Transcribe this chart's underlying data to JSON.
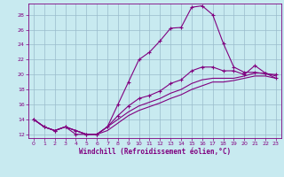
{
  "xlabel": "Windchill (Refroidissement éolien,°C)",
  "xlim": [
    -0.5,
    23.5
  ],
  "ylim": [
    11.5,
    29.5
  ],
  "xticks": [
    0,
    1,
    2,
    3,
    4,
    5,
    6,
    7,
    8,
    9,
    10,
    11,
    12,
    13,
    14,
    15,
    16,
    17,
    18,
    19,
    20,
    21,
    22,
    23
  ],
  "yticks": [
    12,
    14,
    16,
    18,
    20,
    22,
    24,
    26,
    28
  ],
  "background_color": "#c8eaf0",
  "line_color": "#800080",
  "grid_color": "#99bbcc",
  "curves": [
    {
      "x": [
        0,
        1,
        2,
        3,
        4,
        5,
        6,
        7,
        8,
        9,
        10,
        11,
        12,
        13,
        14,
        15,
        16,
        17,
        18,
        19,
        20,
        21,
        22,
        23
      ],
      "y": [
        14,
        13,
        12.5,
        13,
        12,
        12,
        12,
        13,
        16,
        19,
        22,
        23,
        24.5,
        26.2,
        26.3,
        29,
        29.2,
        28,
        24.2,
        21,
        20.3,
        20.3,
        20.1,
        20
      ],
      "marker": "+"
    },
    {
      "x": [
        0,
        1,
        2,
        3,
        4,
        5,
        6,
        7,
        8,
        9,
        10,
        11,
        12,
        13,
        14,
        15,
        16,
        17,
        18,
        19,
        20,
        21,
        22,
        23
      ],
      "y": [
        14,
        13,
        12.5,
        13,
        12.5,
        12,
        12,
        13,
        14.5,
        15.8,
        16.8,
        17.2,
        17.8,
        18.8,
        19.3,
        20.5,
        21,
        21,
        20.5,
        20.5,
        20,
        21.2,
        20.2,
        19.5
      ],
      "marker": "+"
    },
    {
      "x": [
        0,
        1,
        2,
        3,
        4,
        5,
        6,
        7,
        8,
        9,
        10,
        11,
        12,
        13,
        14,
        15,
        16,
        17,
        18,
        19,
        20,
        21,
        22,
        23
      ],
      "y": [
        14,
        13,
        12.5,
        13,
        12.5,
        12,
        12,
        13,
        14,
        15,
        15.8,
        16.3,
        16.8,
        17.5,
        18,
        18.8,
        19.3,
        19.5,
        19.5,
        19.5,
        19.8,
        20.2,
        20.2,
        19.8
      ],
      "marker": null
    },
    {
      "x": [
        0,
        1,
        2,
        3,
        4,
        5,
        6,
        7,
        8,
        9,
        10,
        11,
        12,
        13,
        14,
        15,
        16,
        17,
        18,
        19,
        20,
        21,
        22,
        23
      ],
      "y": [
        14,
        13,
        12.5,
        13,
        12.5,
        12,
        12,
        12.5,
        13.5,
        14.5,
        15.2,
        15.7,
        16.2,
        16.8,
        17.3,
        18,
        18.5,
        19,
        19,
        19.2,
        19.5,
        19.8,
        19.8,
        19.5
      ],
      "marker": null
    }
  ]
}
